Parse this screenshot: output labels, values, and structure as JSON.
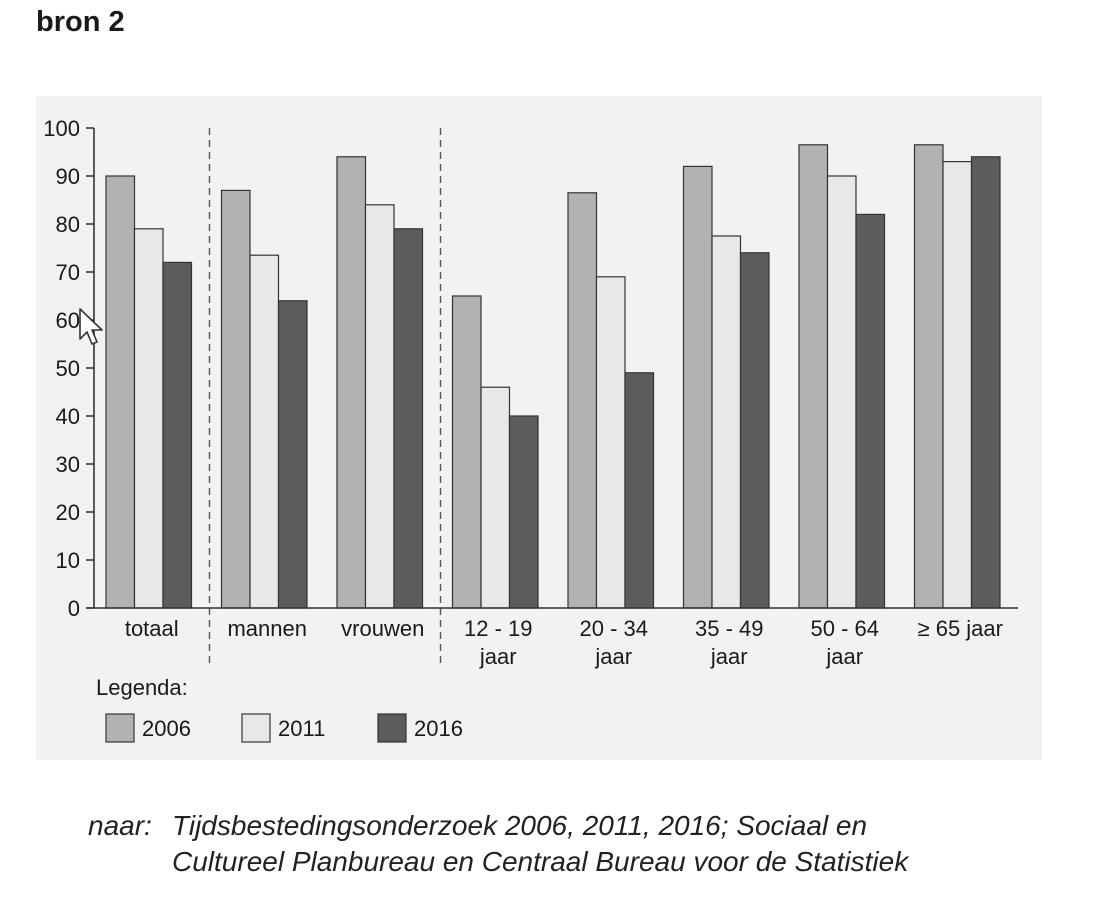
{
  "heading": "bron 2",
  "legend": {
    "title": "Legenda:"
  },
  "source": {
    "prefix": "naar:",
    "line1": "Tijdsbestedingsonderzoek 2006, 2011, 2016; Sociaal en",
    "line2": "Cultureel Planbureau en Centraal Bureau voor de Statistiek"
  },
  "colors": {
    "2006": "#b2b2b2",
    "2011": "#e8e8e8",
    "2016": "#5c5c5c",
    "background": "#f2f2f2"
  },
  "chart_data": {
    "type": "bar",
    "title": "",
    "xlabel": "",
    "ylabel": "",
    "ylim": [
      0,
      100
    ],
    "yticks": [
      0,
      10,
      20,
      30,
      40,
      50,
      60,
      70,
      80,
      90,
      100
    ],
    "grid": false,
    "legend_position": "bottom-left",
    "categories": [
      [
        "totaal"
      ],
      [
        "mannen"
      ],
      [
        "vrouwen"
      ],
      [
        "12 - 19",
        "jaar"
      ],
      [
        "20 - 34",
        "jaar"
      ],
      [
        "35 - 49",
        "jaar"
      ],
      [
        "50 - 64",
        "jaar"
      ],
      [
        "≥ 65 jaar"
      ]
    ],
    "group_separators_after": [
      0,
      2
    ],
    "series": [
      {
        "name": "2006",
        "values": [
          90,
          87,
          94,
          65,
          86.5,
          92,
          96.5,
          96.5
        ]
      },
      {
        "name": "2011",
        "values": [
          79,
          73.5,
          84,
          46,
          69,
          77.5,
          90,
          93
        ]
      },
      {
        "name": "2016",
        "values": [
          72,
          64,
          79,
          40,
          49,
          74,
          82,
          94
        ]
      }
    ]
  }
}
